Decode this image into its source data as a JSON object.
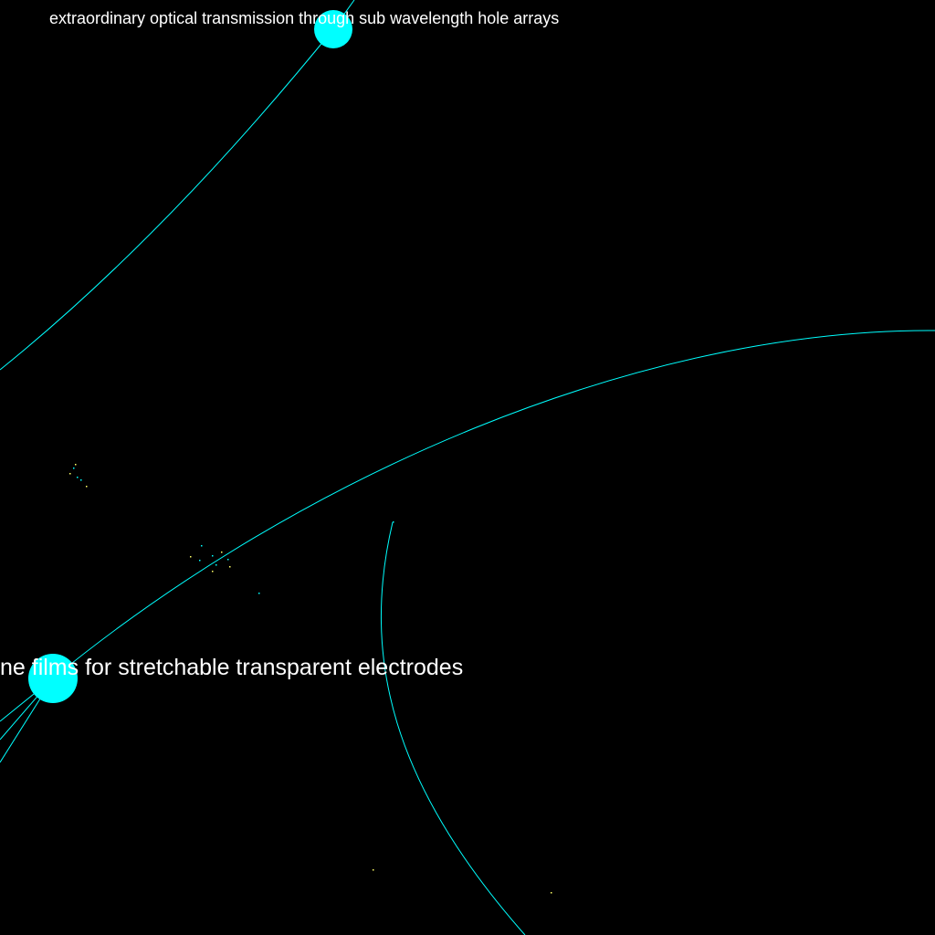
{
  "colors": {
    "background": "#000000",
    "node": "#00ffff",
    "edge": "#00ffff",
    "label": "#ffffff",
    "dust_cyan": "#00ffff",
    "dust_yellow": "#ffff66"
  },
  "nodes": [
    {
      "id": "node-eot",
      "label": "extraordinary optical transmission through sub wavelength hole arrays"
    },
    {
      "id": "node-graphene",
      "label": "ne films for stretchable transparent electrodes"
    }
  ]
}
